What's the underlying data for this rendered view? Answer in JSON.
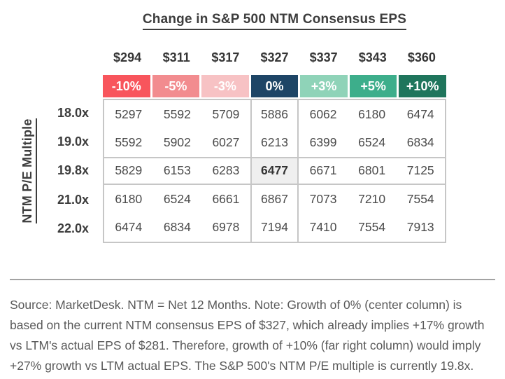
{
  "title": "Change in S&P 500 NTM Consensus EPS",
  "chart_data": {
    "type": "table",
    "title": "Change in S&P 500 NTM Consensus EPS",
    "y_axis_label": "NTM P/E Multiple",
    "eps_values": [
      "$294",
      "$311",
      "$317",
      "$327",
      "$337",
      "$343",
      "$360"
    ],
    "pct_values": [
      "-10%",
      "-5%",
      "-3%",
      "0%",
      "+3%",
      "+5%",
      "+10%"
    ],
    "pct_colors": [
      "#F8555C",
      "#F28C8F",
      "#F7C2C4",
      "#1E4566",
      "#8FD3B8",
      "#3DAE8B",
      "#1F755C"
    ],
    "rows": [
      {
        "label": "18.0x",
        "values": [
          5297,
          5592,
          5709,
          5886,
          6062,
          6180,
          6474
        ]
      },
      {
        "label": "19.0x",
        "values": [
          5592,
          5902,
          6027,
          6213,
          6399,
          6524,
          6834
        ]
      },
      {
        "label": "19.8x",
        "values": [
          5829,
          6153,
          6283,
          6477,
          6671,
          6801,
          7125
        ]
      },
      {
        "label": "21.0x",
        "values": [
          6180,
          6524,
          6661,
          6867,
          7073,
          7210,
          7554
        ]
      },
      {
        "label": "22.0x",
        "values": [
          6474,
          6834,
          6978,
          7194,
          7410,
          7554,
          7913
        ]
      }
    ],
    "highlight": {
      "row": "19.8x",
      "column": "0%",
      "value": 6477,
      "background": "#EFEFEF"
    }
  },
  "footnote": "Source: MarketDesk. NTM = Net 12 Months. Note: Growth of 0% (center column) is based on the current NTM consensus EPS of $327, which already implies +17% growth vs LTM's actual EPS of $281. Therefore, growth of +10% (far right column) would imply +27% growth vs LTM actual EPS. The S&P 500's NTM P/E multiple is currently 19.8x."
}
